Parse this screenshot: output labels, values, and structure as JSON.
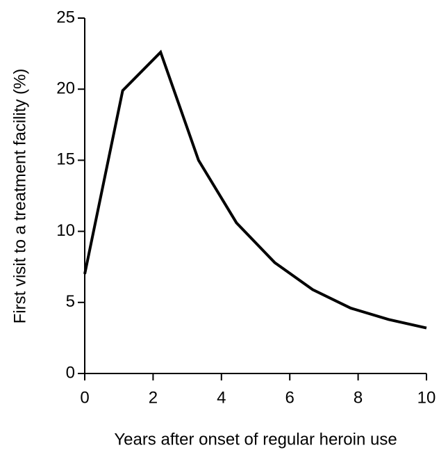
{
  "chart_data": {
    "type": "line",
    "x_label": "Years after onset of regular heroin use",
    "y_label": "First visit to a treatment facility (%)",
    "x": [
      0,
      1.11,
      2.22,
      3.33,
      4.44,
      5.56,
      6.67,
      7.78,
      8.89,
      10
    ],
    "series": [
      {
        "color": "#000000",
        "values": [
          7.0,
          19.9,
          22.6,
          15.0,
          10.6,
          7.8,
          5.9,
          4.6,
          3.8,
          3.2
        ]
      }
    ],
    "xlim": [
      0,
      10
    ],
    "xticks": [
      0,
      2,
      4,
      6,
      8,
      10
    ],
    "ylim": [
      0,
      25
    ],
    "yticks": [
      0,
      5,
      10,
      15,
      20,
      25
    ],
    "grid": false
  }
}
